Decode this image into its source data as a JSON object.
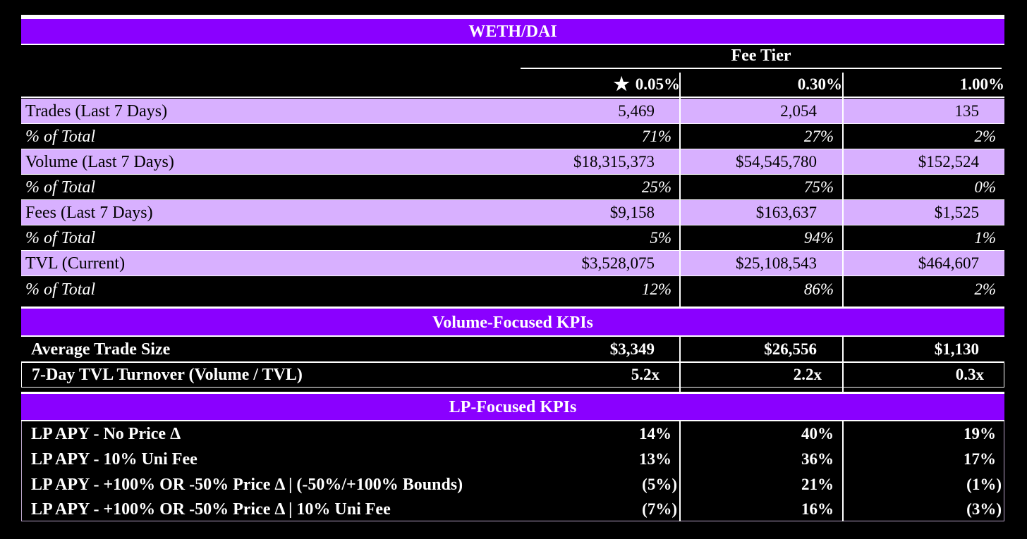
{
  "title": "WETH/DAI",
  "fee_tier_label": "Fee Tier",
  "fee_tiers": [
    "0.05%",
    "0.30%",
    "1.00%"
  ],
  "recommended_icon": "star-icon",
  "metrics": [
    {
      "label": "Trades (Last 7 Days)",
      "values": [
        "5,469",
        "2,054",
        "135"
      ],
      "pct_label": "% of Total",
      "pcts": [
        "71%",
        "27%",
        "2%"
      ]
    },
    {
      "label": "Volume (Last 7 Days)",
      "values": [
        "$18,315,373",
        "$54,545,780",
        "$152,524"
      ],
      "pct_label": "% of Total",
      "pcts": [
        "25%",
        "75%",
        "0%"
      ]
    },
    {
      "label": "Fees (Last 7 Days)",
      "values": [
        "$9,158",
        "$163,637",
        "$1,525"
      ],
      "pct_label": "% of Total",
      "pcts": [
        "5%",
        "94%",
        "1%"
      ]
    },
    {
      "label": "TVL (Current)",
      "values": [
        "$3,528,075",
        "$25,108,543",
        "$464,607"
      ],
      "pct_label": "% of Total",
      "pcts": [
        "12%",
        "86%",
        "2%"
      ]
    }
  ],
  "volume_kpis": {
    "title": "Volume-Focused KPIs",
    "rows": [
      {
        "label": "Average Trade Size",
        "values": [
          "$3,349",
          "$26,556",
          "$1,130"
        ]
      },
      {
        "label": "7-Day TVL Turnover (Volume / TVL)",
        "values": [
          "5.2x",
          "2.2x",
          "0.3x"
        ]
      }
    ]
  },
  "lp_kpis": {
    "title": "LP-Focused KPIs",
    "rows": [
      {
        "label": "LP APY - No Price Δ",
        "values": [
          "14%",
          "40%",
          "19%"
        ]
      },
      {
        "label": "LP APY - 10% Uni Fee",
        "values": [
          "13%",
          "36%",
          "17%"
        ]
      },
      {
        "label": "LP APY - +100% OR -50% Price Δ | (-50%/+100% Bounds)",
        "values": [
          "(5%)",
          "21%",
          "(1%)"
        ]
      },
      {
        "label": "LP APY - +100% OR -50% Price Δ | 10% Uni Fee",
        "values": [
          "(7%)",
          "16%",
          "(3%)"
        ]
      }
    ]
  },
  "colors": {
    "band": "#8a00ff",
    "lavender": "#d8b0ff",
    "background": "#000000"
  }
}
